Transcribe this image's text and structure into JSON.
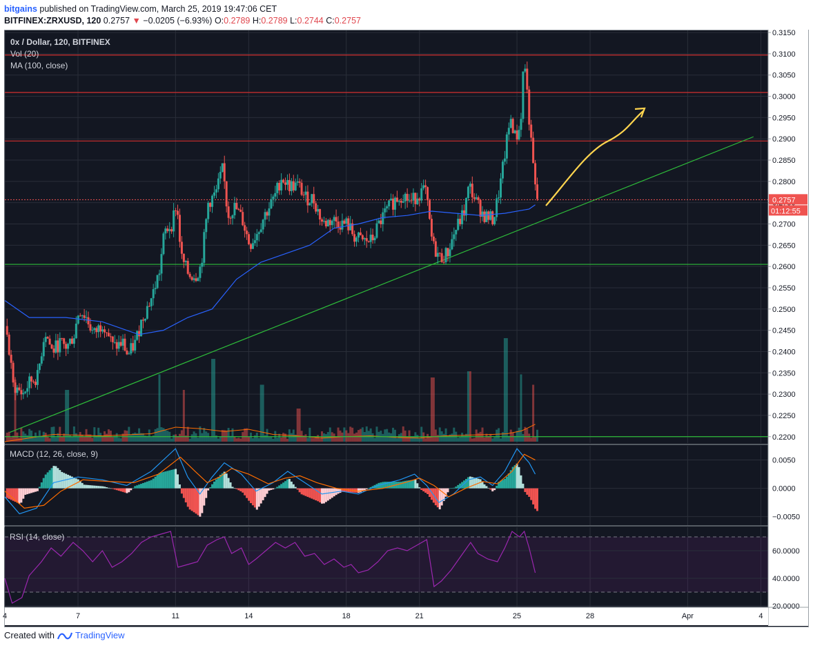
{
  "header": {
    "user": "bitgains",
    "published_text": "published on TradingView.com, March 25, 2019 19:47:06 CET",
    "symbol_line": "BITFINEX:ZRXUSD, 120",
    "last": "0.2757",
    "change_arrow": "▼",
    "change": "−0.0205 (−6.93%)",
    "o_label": "O:",
    "o_val": "0.2789",
    "h_label": "H:",
    "h_val": "0.2789",
    "l_label": "L:",
    "l_val": "0.2744",
    "c_label": "C:",
    "c_val": "0.2757"
  },
  "footer": {
    "created": "Created with",
    "brand": "TradingView",
    "logo_icon": "tradingview-logo-icon"
  },
  "colors": {
    "background": "#131722",
    "up": "#26a69a",
    "down": "#ef5350",
    "ma": "#2962ff",
    "macd": "#2196f3",
    "signal": "#ff6d00",
    "rsi": "#9c27b0",
    "trend": "#2ebd3a",
    "resistance": "#d32f2f",
    "arrow": "#ffd54f"
  },
  "chart_data": [
    {
      "type": "candlestick",
      "title": "0x / Dollar, 120, BITFINEX",
      "legend": [
        "Vol (20)",
        "MA (100, close)"
      ],
      "ylim": [
        0.2185,
        0.3155
      ],
      "y_ticks": [
        "0.3150",
        "0.3100",
        "0.3050",
        "0.3000",
        "0.2950",
        "0.2900",
        "0.2850",
        "0.2800",
        "0.2750",
        "0.2700",
        "0.2650",
        "0.2600",
        "0.2550",
        "0.2500",
        "0.2450",
        "0.2400",
        "0.2350",
        "0.2300",
        "0.2250",
        "0.2200"
      ],
      "x_ticks": [
        "4",
        "7",
        "11",
        "14",
        "18",
        "21",
        "25",
        "28",
        "Apr",
        "4"
      ],
      "x_tick_days": [
        4,
        7,
        11,
        14,
        18,
        21,
        25,
        28,
        32,
        35
      ],
      "x_range_days": [
        4,
        35.3
      ],
      "last_price_label": "0.2757",
      "countdown_label": "01:12:55",
      "close_path": [
        [
          4.0,
          0.246
        ],
        [
          4.3,
          0.232
        ],
        [
          4.7,
          0.23
        ],
        [
          5.0,
          0.233
        ],
        [
          5.3,
          0.234
        ],
        [
          5.6,
          0.245
        ],
        [
          5.9,
          0.24
        ],
        [
          6.2,
          0.242
        ],
        [
          6.5,
          0.241
        ],
        [
          6.8,
          0.244
        ],
        [
          7.0,
          0.25
        ],
        [
          7.3,
          0.248
        ],
        [
          7.6,
          0.244
        ],
        [
          8.0,
          0.247
        ],
        [
          8.4,
          0.241
        ],
        [
          8.8,
          0.242
        ],
        [
          9.0,
          0.239
        ],
        [
          9.3,
          0.242
        ],
        [
          9.6,
          0.248
        ],
        [
          10.0,
          0.253
        ],
        [
          10.3,
          0.259
        ],
        [
          10.5,
          0.268
        ],
        [
          10.8,
          0.27
        ],
        [
          11.0,
          0.275
        ],
        [
          11.2,
          0.262
        ],
        [
          11.5,
          0.258
        ],
        [
          11.8,
          0.258
        ],
        [
          12.0,
          0.26
        ],
        [
          12.3,
          0.275
        ],
        [
          12.6,
          0.277
        ],
        [
          12.9,
          0.283
        ],
        [
          13.1,
          0.272
        ],
        [
          13.4,
          0.274
        ],
        [
          13.7,
          0.271
        ],
        [
          14.0,
          0.265
        ],
        [
          14.3,
          0.268
        ],
        [
          14.6,
          0.272
        ],
        [
          15.0,
          0.276
        ],
        [
          15.3,
          0.281
        ],
        [
          15.6,
          0.279
        ],
        [
          16.0,
          0.279
        ],
        [
          16.3,
          0.276
        ],
        [
          16.6,
          0.276
        ],
        [
          17.0,
          0.27
        ],
        [
          17.4,
          0.271
        ],
        [
          17.8,
          0.27
        ],
        [
          18.0,
          0.27
        ],
        [
          18.3,
          0.267
        ],
        [
          18.6,
          0.266
        ],
        [
          19.0,
          0.266
        ],
        [
          19.3,
          0.27
        ],
        [
          19.6,
          0.273
        ],
        [
          20.0,
          0.276
        ],
        [
          20.3,
          0.277
        ],
        [
          20.6,
          0.275
        ],
        [
          20.9,
          0.277
        ],
        [
          21.2,
          0.278
        ],
        [
          21.5,
          0.265
        ],
        [
          21.8,
          0.262
        ],
        [
          22.1,
          0.263
        ],
        [
          22.4,
          0.268
        ],
        [
          22.8,
          0.273
        ],
        [
          23.0,
          0.279
        ],
        [
          23.3,
          0.275
        ],
        [
          23.6,
          0.272
        ],
        [
          24.0,
          0.271
        ],
        [
          24.3,
          0.28
        ],
        [
          24.5,
          0.288
        ],
        [
          24.7,
          0.295
        ],
        [
          24.9,
          0.29
        ],
        [
          25.1,
          0.293
        ],
        [
          25.25,
          0.31
        ],
        [
          25.4,
          0.299
        ],
        [
          25.55,
          0.288
        ],
        [
          25.65,
          0.282
        ],
        [
          25.75,
          0.2757
        ]
      ],
      "ma100_path": [
        [
          4.0,
          0.252
        ],
        [
          5.0,
          0.248
        ],
        [
          6.5,
          0.248
        ],
        [
          8.0,
          0.247
        ],
        [
          9.5,
          0.244
        ],
        [
          10.5,
          0.245
        ],
        [
          11.5,
          0.248
        ],
        [
          12.5,
          0.25
        ],
        [
          13.5,
          0.257
        ],
        [
          14.5,
          0.261
        ],
        [
          15.5,
          0.263
        ],
        [
          16.5,
          0.265
        ],
        [
          17.5,
          0.269
        ],
        [
          18.5,
          0.27
        ],
        [
          19.5,
          0.2715
        ],
        [
          20.5,
          0.272
        ],
        [
          21.5,
          0.273
        ],
        [
          22.5,
          0.2725
        ],
        [
          23.5,
          0.272
        ],
        [
          24.5,
          0.2725
        ],
        [
          25.5,
          0.2735
        ],
        [
          25.75,
          0.2745
        ]
      ],
      "trendline": [
        [
          4.2,
          0.221
        ],
        [
          34.7,
          0.2905
        ]
      ],
      "support_lines": [
        0.2605,
        0.22
      ],
      "resistance_lines": [
        0.3097,
        0.3009,
        0.2895
      ],
      "volume_ma_path": [
        [
          4.0,
          0.0
        ],
        [
          6.0,
          0.2
        ],
        [
          8.0,
          0.16
        ],
        [
          10.0,
          0.22
        ],
        [
          11.0,
          0.4
        ],
        [
          12.0,
          0.36
        ],
        [
          13.0,
          0.28
        ],
        [
          14.0,
          0.34
        ],
        [
          15.0,
          0.2
        ],
        [
          16.0,
          0.16
        ],
        [
          17.0,
          0.1
        ],
        [
          18.0,
          0.14
        ],
        [
          19.0,
          0.16
        ],
        [
          20.0,
          0.12
        ],
        [
          21.0,
          0.1
        ],
        [
          22.0,
          0.16
        ],
        [
          23.0,
          0.18
        ],
        [
          24.0,
          0.2
        ],
        [
          24.6,
          0.22
        ],
        [
          25.2,
          0.3
        ],
        [
          25.75,
          0.48
        ]
      ],
      "volume_spikes": [
        [
          4.4,
          0.6
        ],
        [
          6.5,
          0.5
        ],
        [
          10.3,
          0.65
        ],
        [
          11.3,
          0.5
        ],
        [
          12.5,
          0.8
        ],
        [
          14.5,
          0.55
        ],
        [
          16.0,
          0.32
        ],
        [
          21.5,
          0.62
        ],
        [
          23.0,
          0.68
        ],
        [
          24.5,
          1.0
        ],
        [
          25.1,
          0.65
        ],
        [
          25.6,
          0.55
        ]
      ]
    },
    {
      "type": "line",
      "title": "MACD (12, 26, close, 9)",
      "ylim": [
        -0.0065,
        0.0075
      ],
      "y_ticks": [
        "0.0050",
        "0.0000",
        "−0.0050"
      ],
      "series": [
        {
          "role": "macd",
          "path": [
            [
              4.0,
              -0.0015
            ],
            [
              4.6,
              -0.0045
            ],
            [
              5.3,
              -0.0035
            ],
            [
              6.0,
              0.001
            ],
            [
              7.0,
              0.002
            ],
            [
              8.0,
              0.0015
            ],
            [
              9.0,
              0.0005
            ],
            [
              10.0,
              0.003
            ],
            [
              11.0,
              0.007
            ],
            [
              11.5,
              0.002
            ],
            [
              12.0,
              -0.001
            ],
            [
              12.5,
              0.002
            ],
            [
              13.0,
              0.0045
            ],
            [
              13.7,
              0.0025
            ],
            [
              14.3,
              -0.0005
            ],
            [
              15.0,
              0.001
            ],
            [
              15.6,
              0.003
            ],
            [
              16.3,
              0.001
            ],
            [
              17.0,
              -0.001
            ],
            [
              17.8,
              -0.0005
            ],
            [
              18.5,
              -0.001
            ],
            [
              19.3,
              0.0005
            ],
            [
              20.2,
              0.0015
            ],
            [
              20.8,
              0.0025
            ],
            [
              21.3,
              0.0005
            ],
            [
              21.8,
              -0.0025
            ],
            [
              22.4,
              -0.001
            ],
            [
              23.0,
              0.0015
            ],
            [
              23.5,
              0.002
            ],
            [
              24.0,
              0.0005
            ],
            [
              24.5,
              0.003
            ],
            [
              25.0,
              0.007
            ],
            [
              25.3,
              0.0055
            ],
            [
              25.5,
              0.0045
            ],
            [
              25.75,
              0.0025
            ]
          ]
        },
        {
          "role": "signal",
          "path": [
            [
              4.0,
              -0.0005
            ],
            [
              4.8,
              -0.0035
            ],
            [
              5.6,
              -0.003
            ],
            [
              6.3,
              -0.0005
            ],
            [
              7.2,
              0.0015
            ],
            [
              8.3,
              0.0012
            ],
            [
              9.3,
              0.001
            ],
            [
              10.3,
              0.0025
            ],
            [
              11.2,
              0.0055
            ],
            [
              11.8,
              0.003
            ],
            [
              12.3,
              0.001
            ],
            [
              12.8,
              0.002
            ],
            [
              13.3,
              0.0035
            ],
            [
              14.0,
              0.0025
            ],
            [
              14.8,
              0.0008
            ],
            [
              15.5,
              0.0018
            ],
            [
              16.1,
              0.0022
            ],
            [
              16.8,
              0.001
            ],
            [
              17.6,
              0.0
            ],
            [
              18.5,
              -0.0005
            ],
            [
              19.5,
              0.0
            ],
            [
              20.4,
              0.001
            ],
            [
              21.0,
              0.0018
            ],
            [
              21.6,
              0.0005
            ],
            [
              22.2,
              -0.0015
            ],
            [
              22.9,
              0.0
            ],
            [
              23.6,
              0.0012
            ],
            [
              24.2,
              0.0008
            ],
            [
              24.8,
              0.003
            ],
            [
              25.3,
              0.006
            ],
            [
              25.75,
              0.005
            ]
          ]
        }
      ]
    },
    {
      "type": "line",
      "title": "RSI (14, close)",
      "ylim": [
        19.0,
        77.0
      ],
      "y_ticks": [
        "60.0000",
        "40.0000",
        "20.0000"
      ],
      "bands": [
        70,
        30
      ],
      "series": [
        {
          "role": "rsi",
          "path": [
            [
              4.0,
              40
            ],
            [
              4.3,
              22
            ],
            [
              4.7,
              26
            ],
            [
              5.0,
              42
            ],
            [
              5.5,
              52
            ],
            [
              5.9,
              62
            ],
            [
              6.3,
              56
            ],
            [
              6.8,
              66
            ],
            [
              7.2,
              60
            ],
            [
              7.6,
              52
            ],
            [
              8.0,
              60
            ],
            [
              8.4,
              48
            ],
            [
              8.8,
              52
            ],
            [
              9.2,
              58
            ],
            [
              9.6,
              66
            ],
            [
              10.0,
              70
            ],
            [
              10.4,
              72
            ],
            [
              10.8,
              74
            ],
            [
              11.1,
              48
            ],
            [
              11.5,
              50
            ],
            [
              11.9,
              52
            ],
            [
              12.3,
              64
            ],
            [
              12.7,
              68
            ],
            [
              13.0,
              70
            ],
            [
              13.3,
              58
            ],
            [
              13.7,
              62
            ],
            [
              14.0,
              50
            ],
            [
              14.3,
              54
            ],
            [
              14.7,
              60
            ],
            [
              15.1,
              66
            ],
            [
              15.5,
              62
            ],
            [
              15.9,
              66
            ],
            [
              16.3,
              56
            ],
            [
              16.7,
              58
            ],
            [
              17.1,
              50
            ],
            [
              17.5,
              54
            ],
            [
              17.9,
              48
            ],
            [
              18.2,
              50
            ],
            [
              18.5,
              44
            ],
            [
              18.9,
              46
            ],
            [
              19.3,
              52
            ],
            [
              19.7,
              60
            ],
            [
              20.1,
              62
            ],
            [
              20.5,
              60
            ],
            [
              20.9,
              64
            ],
            [
              21.3,
              68
            ],
            [
              21.6,
              34
            ],
            [
              21.9,
              38
            ],
            [
              22.3,
              46
            ],
            [
              22.7,
              56
            ],
            [
              23.1,
              66
            ],
            [
              23.4,
              58
            ],
            [
              23.8,
              54
            ],
            [
              24.2,
              52
            ],
            [
              24.5,
              62
            ],
            [
              24.8,
              74
            ],
            [
              25.1,
              70
            ],
            [
              25.3,
              74
            ],
            [
              25.5,
              62
            ],
            [
              25.75,
              44
            ]
          ]
        }
      ]
    }
  ]
}
